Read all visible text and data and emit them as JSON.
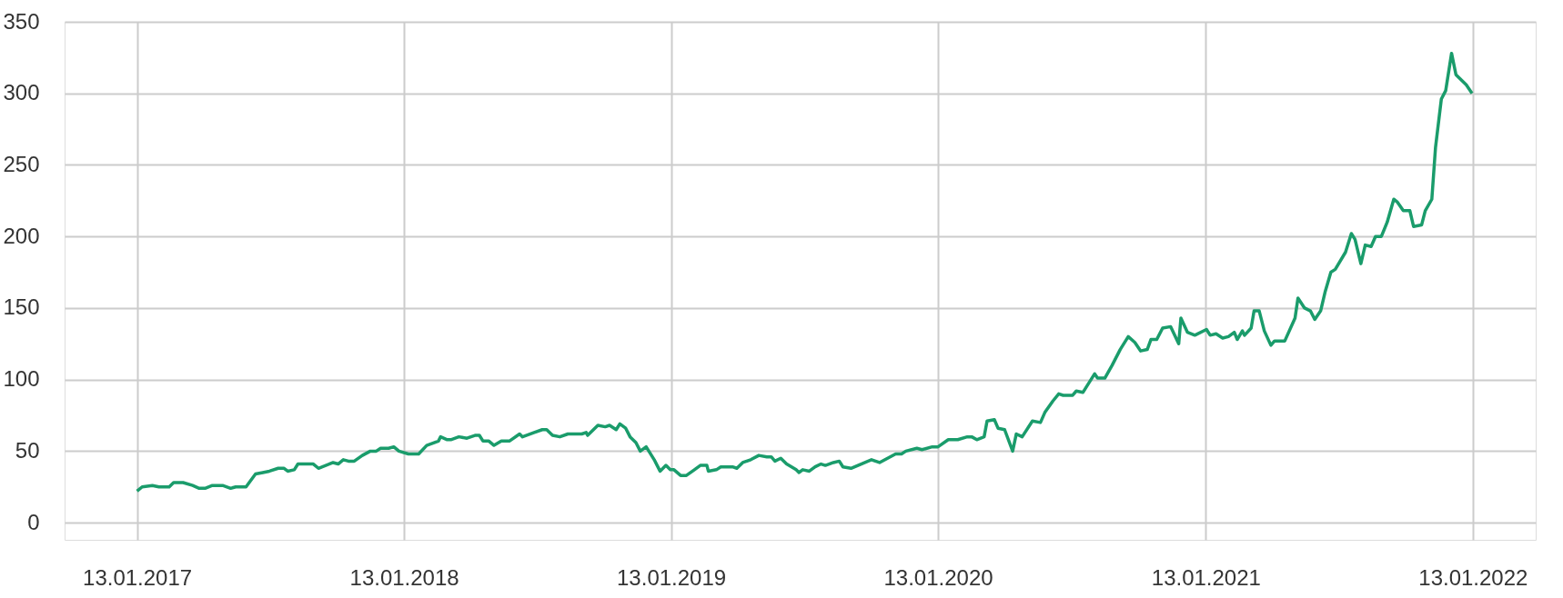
{
  "chart_data": {
    "type": "line",
    "x": [
      "2017-01-13",
      "2017-01-20",
      "2017-02-03",
      "2017-02-12",
      "2017-02-26",
      "2017-03-04",
      "2017-03-17",
      "2017-03-30",
      "2017-04-08",
      "2017-04-16",
      "2017-04-26",
      "2017-05-10",
      "2017-05-21",
      "2017-05-28",
      "2017-06-11",
      "2017-06-24",
      "2017-07-04",
      "2017-07-13",
      "2017-07-25",
      "2017-08-02",
      "2017-08-07",
      "2017-08-16",
      "2017-08-21",
      "2017-09-11",
      "2017-09-18",
      "2017-10-08",
      "2017-10-15",
      "2017-10-22",
      "2017-10-29",
      "2017-11-06",
      "2017-11-17",
      "2017-11-28",
      "2017-12-06",
      "2017-12-12",
      "2017-12-23",
      "2017-12-30",
      "2018-01-06",
      "2018-01-19",
      "2018-02-02",
      "2018-02-13",
      "2018-03-01",
      "2018-03-04",
      "2018-03-13",
      "2018-03-18",
      "2018-03-29",
      "2018-04-09",
      "2018-04-20",
      "2018-04-26",
      "2018-05-01",
      "2018-05-09",
      "2018-05-16",
      "2018-05-26",
      "2018-06-06",
      "2018-06-20",
      "2018-06-24",
      "2018-07-10",
      "2018-07-21",
      "2018-07-27",
      "2018-08-04",
      "2018-08-14",
      "2018-08-25",
      "2018-09-13",
      "2018-09-19",
      "2018-09-21",
      "2018-10-05",
      "2018-10-15",
      "2018-10-21",
      "2018-10-30",
      "2018-11-04",
      "2018-11-12",
      "2018-11-18",
      "2018-11-26",
      "2018-12-02",
      "2018-12-10",
      "2018-12-21",
      "2018-12-29",
      "2019-01-06",
      "2019-01-12",
      "2019-01-17",
      "2019-01-26",
      "2019-02-03",
      "2019-02-14",
      "2019-02-22",
      "2019-03-03",
      "2019-03-05",
      "2019-03-16",
      "2019-03-22",
      "2019-04-07",
      "2019-04-13",
      "2019-04-21",
      "2019-05-02",
      "2019-05-13",
      "2019-05-24",
      "2019-05-30",
      "2019-06-04",
      "2019-06-12",
      "2019-06-20",
      "2019-07-03",
      "2019-07-07",
      "2019-07-12",
      "2019-07-21",
      "2019-07-29",
      "2019-08-06",
      "2019-08-12",
      "2019-08-23",
      "2019-08-31",
      "2019-09-05",
      "2019-09-16",
      "2019-09-30",
      "2019-10-14",
      "2019-10-25",
      "2019-11-16",
      "2019-11-24",
      "2019-11-30",
      "2019-12-15",
      "2019-12-22",
      "2020-01-05",
      "2020-01-13",
      "2020-01-27",
      "2020-02-09",
      "2020-02-22",
      "2020-02-28",
      "2020-03-06",
      "2020-03-16",
      "2020-03-20",
      "2020-03-30",
      "2020-04-04",
      "2020-04-13",
      "2020-04-24",
      "2020-04-29",
      "2020-05-07",
      "2020-05-21",
      "2020-06-01",
      "2020-06-07",
      "2020-06-18",
      "2020-06-26",
      "2020-07-02",
      "2020-07-15",
      "2020-07-20",
      "2020-07-29",
      "2020-08-14",
      "2020-08-18",
      "2020-08-28",
      "2020-09-07",
      "2020-09-18",
      "2020-09-29",
      "2020-10-08",
      "2020-10-16",
      "2020-10-25",
      "2020-10-30",
      "2020-11-07",
      "2020-11-15",
      "2020-11-26",
      "2020-12-07",
      "2020-12-10",
      "2020-12-19",
      "2020-12-29",
      "2021-01-14",
      "2021-01-19",
      "2021-01-27",
      "2021-02-05",
      "2021-02-13",
      "2021-02-21",
      "2021-02-25",
      "2021-03-04",
      "2021-03-07",
      "2021-03-16",
      "2021-03-20",
      "2021-03-27",
      "2021-04-03",
      "2021-04-12",
      "2021-04-17",
      "2021-05-01",
      "2021-05-15",
      "2021-05-19",
      "2021-05-28",
      "2021-06-05",
      "2021-06-11",
      "2021-06-19",
      "2021-06-25",
      "2021-07-03",
      "2021-07-09",
      "2021-07-23",
      "2021-07-31",
      "2021-08-05",
      "2021-08-13",
      "2021-08-19",
      "2021-08-27",
      "2021-09-02",
      "2021-09-10",
      "2021-09-18",
      "2021-09-27",
      "2021-10-02",
      "2021-10-10",
      "2021-10-19",
      "2021-10-24",
      "2021-11-04",
      "2021-11-09",
      "2021-11-18",
      "2021-11-23",
      "2021-12-01",
      "2021-12-07",
      "2021-12-15",
      "2021-12-21",
      "2022-01-04",
      "2022-01-12"
    ],
    "series": [
      {
        "color": "#1a9c6b",
        "values": [
          22,
          25,
          26,
          25,
          25,
          28,
          28,
          26,
          24,
          24,
          26,
          26,
          24,
          25,
          25,
          34,
          35,
          36,
          38,
          38,
          36,
          37,
          41,
          41,
          38,
          42,
          41,
          44,
          43,
          43,
          47,
          50,
          50,
          52,
          52,
          53,
          50,
          48,
          48,
          54,
          57,
          60,
          58,
          58,
          60,
          59,
          61,
          61,
          57,
          57,
          54,
          57,
          57,
          62,
          60,
          63,
          65,
          65,
          61,
          60,
          62,
          62,
          63,
          61,
          68,
          67,
          68,
          65,
          69,
          66,
          60,
          56,
          50,
          53,
          44,
          36,
          40,
          37,
          37,
          33,
          33,
          37,
          40,
          40,
          36,
          37,
          39,
          39,
          38,
          42,
          44,
          47,
          46,
          46,
          43,
          45,
          41,
          37,
          35,
          37,
          36,
          39,
          41,
          40,
          42,
          43,
          39,
          38,
          41,
          44,
          42,
          48,
          48,
          50,
          52,
          51,
          53,
          53,
          58,
          58,
          60,
          60,
          58,
          60,
          71,
          72,
          66,
          65,
          50,
          62,
          60,
          71,
          70,
          77,
          85,
          90,
          89,
          89,
          92,
          91,
          104,
          101,
          101,
          110,
          121,
          130,
          126,
          120,
          121,
          128,
          128,
          136,
          137,
          125,
          143,
          133,
          131,
          135,
          131,
          132,
          129,
          130,
          133,
          128,
          134,
          131,
          136,
          148,
          148,
          134,
          124,
          127,
          127,
          143,
          157,
          150,
          148,
          142,
          148,
          161,
          175,
          177,
          189,
          202,
          198,
          181,
          194,
          193,
          200,
          200,
          210,
          226,
          224,
          218,
          218,
          207,
          208,
          218,
          226,
          262,
          296,
          302,
          328,
          313,
          306,
          300
        ]
      }
    ],
    "xlim": [
      "2016-10-06",
      "2022-04-09"
    ],
    "ylim": [
      -12,
      350
    ],
    "xticks": [
      {
        "value": "2017-01-13",
        "label": "13.01.2017"
      },
      {
        "value": "2018-01-13",
        "label": "13.01.2018"
      },
      {
        "value": "2019-01-13",
        "label": "13.01.2019"
      },
      {
        "value": "2020-01-13",
        "label": "13.01.2020"
      },
      {
        "value": "2021-01-13",
        "label": "13.01.2021"
      },
      {
        "value": "2022-01-13",
        "label": "13.01.2022"
      }
    ],
    "yticks": [
      0,
      50,
      100,
      150,
      200,
      250,
      300,
      350
    ],
    "grid": true,
    "line_style": "solid",
    "marker": "none"
  }
}
